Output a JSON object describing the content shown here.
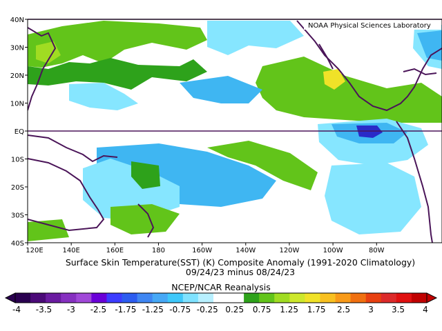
{
  "chart_data": {
    "type": "heatmap",
    "kind": "geographic anomaly map",
    "title_line1": "Surface Skin Temperature(SST) (K) Composite Anomaly (1991-2020 Climatology)",
    "title_line2": "09/24/23 minus 08/24/23",
    "source": "NCEP/NCAR Reanalysis",
    "credit": "NOAA Physical Sciences Laboratory",
    "x_ticks": [
      "120E",
      "140E",
      "160E",
      "180",
      "160W",
      "140W",
      "120W",
      "100W",
      "80W"
    ],
    "y_ticks": [
      "40N",
      "30N",
      "20N",
      "10N",
      "EQ",
      "10S",
      "20S",
      "30S",
      "40S"
    ],
    "lon_range": [
      "120E",
      "70W"
    ],
    "lat_range": [
      "40S",
      "40N"
    ],
    "colorbar": {
      "labels": [
        "-4",
        "-3.5",
        "-3",
        "-2.5",
        "-1.75",
        "-1.25",
        "-0.75",
        "-0.25",
        "0.25",
        "0.75",
        "1.25",
        "1.75",
        "2.5",
        "3",
        "3.5",
        "4"
      ],
      "colors": [
        "#2a0050",
        "#4b0a78",
        "#6a1ba0",
        "#8630c0",
        "#a048d8",
        "#6a00d8",
        "#3c3cff",
        "#2c5cf0",
        "#3f86f2",
        "#46a8f6",
        "#3ec8fa",
        "#7fe2ff",
        "#b8f0ff",
        "#ffffff",
        "#ffffff",
        "#2ea21b",
        "#62c41a",
        "#a0dc22",
        "#cde82c",
        "#f0e228",
        "#f8c020",
        "#f89a18",
        "#f07010",
        "#e84010",
        "#dc2a2a",
        "#e01010",
        "#c00000"
      ]
    },
    "anomaly_palette": {
      "cold_strong": "#2a2ac8",
      "cold_mod": "#3fb6f2",
      "cold_weak": "#86e6ff",
      "warm_weak": "#2ea21b",
      "warm_mod": "#62c41a",
      "warm_strong": "#a0dc22",
      "warm_peak": "#f0e228",
      "hot": "#f89a18"
    },
    "land_outline_color": "#4a1458"
  }
}
